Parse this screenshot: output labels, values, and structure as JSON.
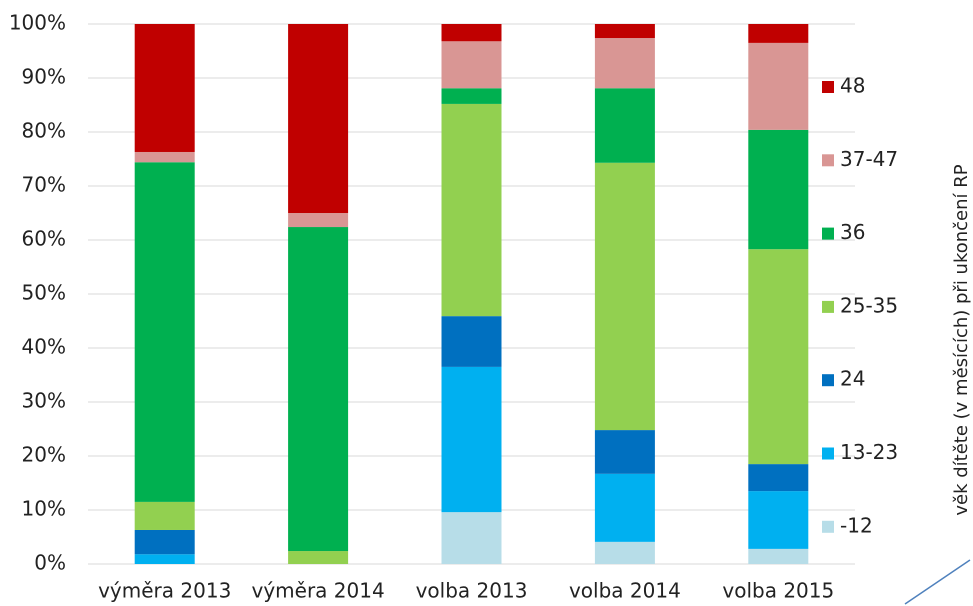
{
  "chart_data": {
    "type": "stacked_bar",
    "categories": [
      "výměra 2013",
      "výměra 2014",
      "volba 2013",
      "volba 2014",
      "volba 2015"
    ],
    "series": [
      {
        "name": "-12",
        "color": "#b7dde8",
        "values": [
          0,
          0,
          9.6,
          4.1,
          2.8
        ]
      },
      {
        "name": "13-23",
        "color": "#00b0f0",
        "values": [
          1.8,
          0,
          26.9,
          12.6,
          10.7
        ]
      },
      {
        "name": "24",
        "color": "#0070c0",
        "values": [
          4.5,
          0,
          9.4,
          8.1,
          5.0
        ]
      },
      {
        "name": "25-35",
        "color": "#92d050",
        "values": [
          5.2,
          2.4,
          39.3,
          49.5,
          39.8
        ]
      },
      {
        "name": "36",
        "color": "#00b050",
        "values": [
          62.9,
          60.0,
          2.9,
          13.8,
          22.1
        ]
      },
      {
        "name": "37-47",
        "color": "#d99694",
        "values": [
          1.9,
          2.6,
          8.7,
          9.3,
          16.1
        ]
      },
      {
        "name": "48",
        "color": "#c00000",
        "values": [
          23.7,
          35.0,
          3.2,
          2.6,
          3.5
        ]
      }
    ],
    "ylim": [
      0,
      100
    ],
    "yticks": [
      {
        "value": 0,
        "label": "0%"
      },
      {
        "value": 10,
        "label": "10%"
      },
      {
        "value": 20,
        "label": "20%"
      },
      {
        "value": 30,
        "label": "30%"
      },
      {
        "value": 40,
        "label": "40%"
      },
      {
        "value": 50,
        "label": "50%"
      },
      {
        "value": 60,
        "label": "60%"
      },
      {
        "value": 70,
        "label": "70%"
      },
      {
        "value": 80,
        "label": "80%"
      },
      {
        "value": 90,
        "label": "90%"
      },
      {
        "value": 100,
        "label": "100%"
      }
    ],
    "grid": true,
    "legend_title": "věk dítěte (v měsících) při ukončení RP",
    "legend": "right"
  }
}
